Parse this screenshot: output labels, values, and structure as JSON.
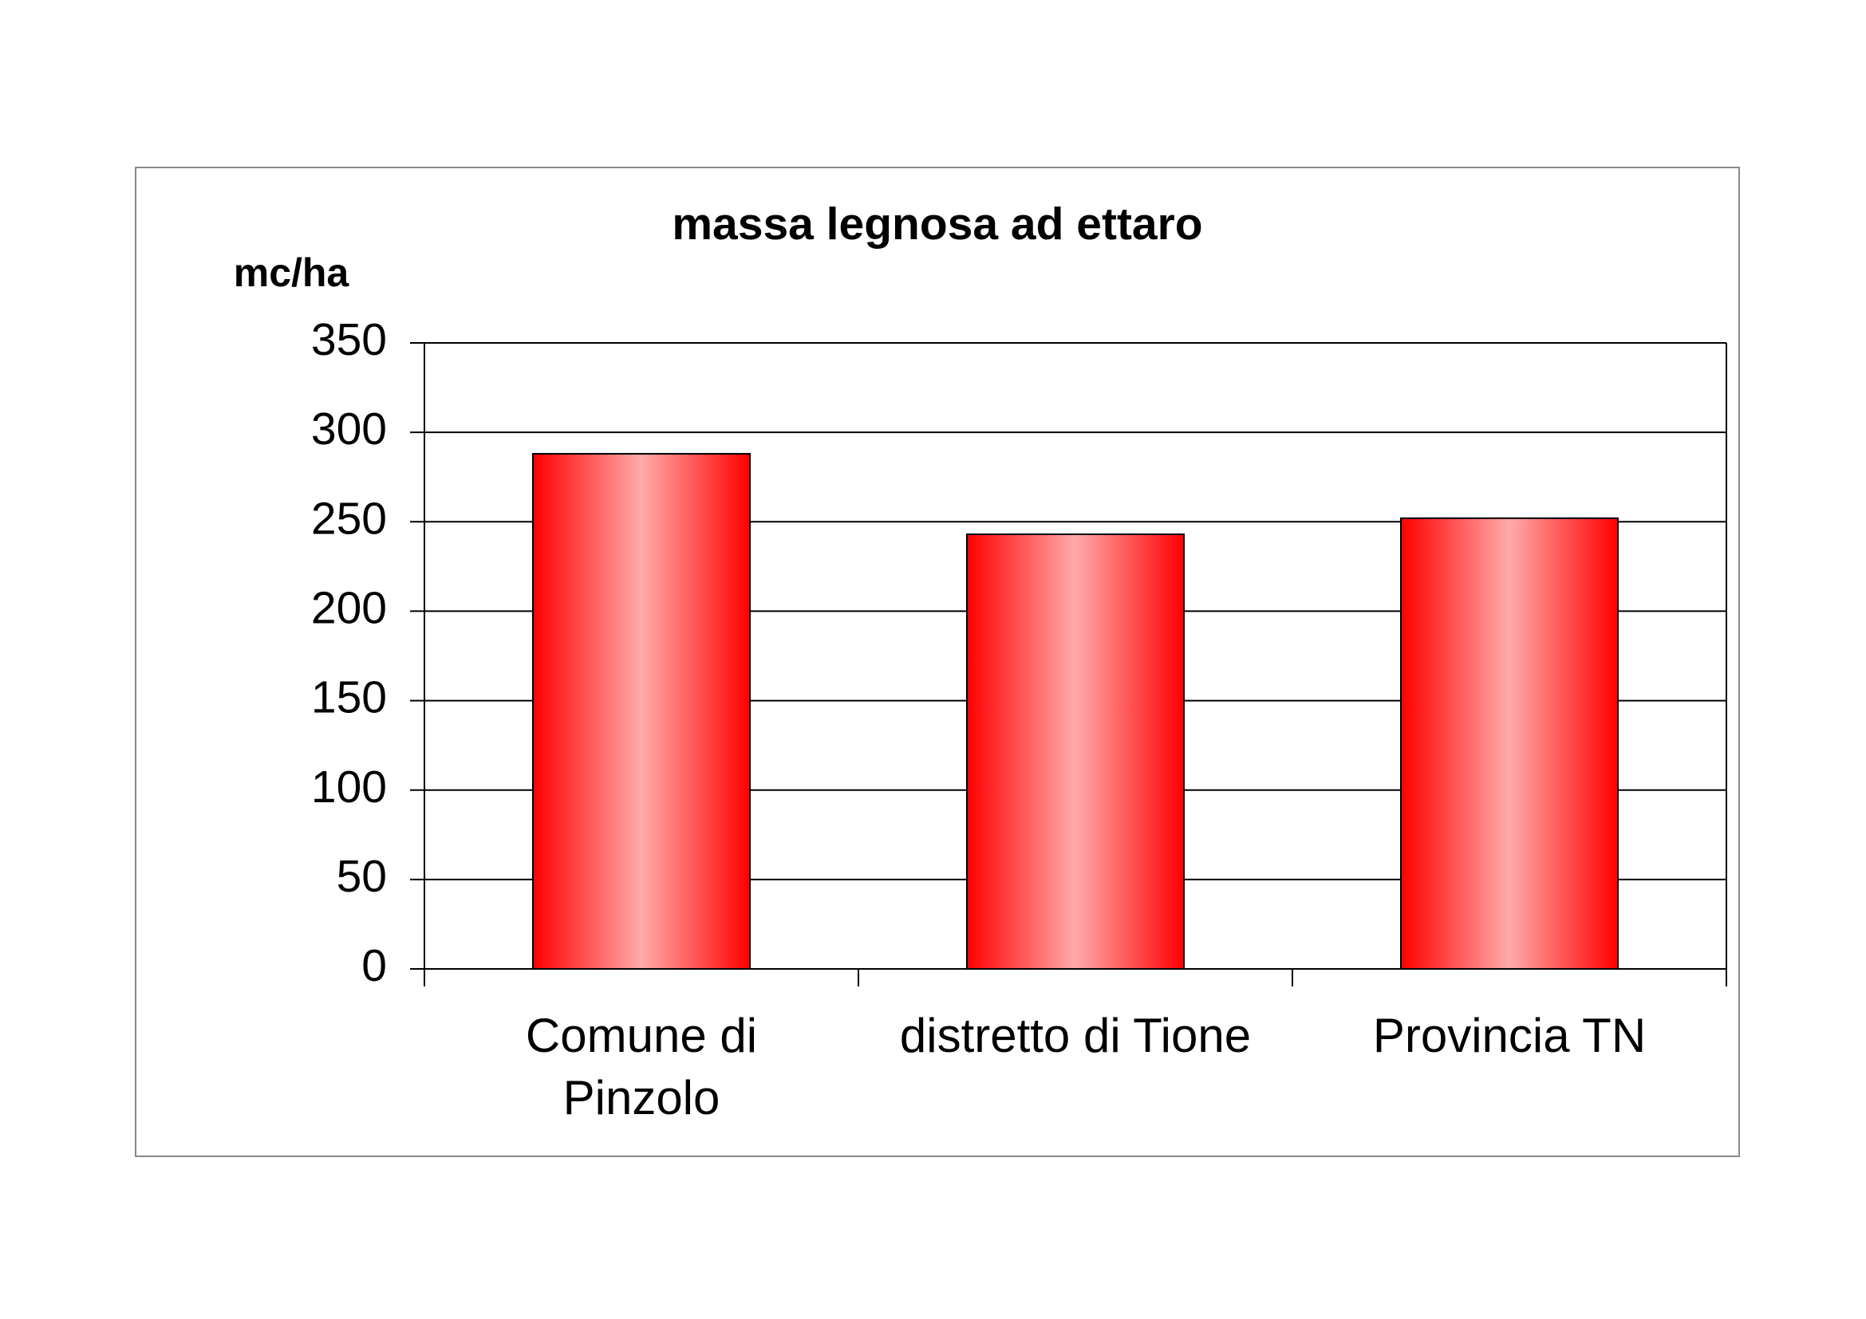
{
  "chart_data": {
    "type": "bar",
    "title": "massa legnosa ad ettaro",
    "ylabel": "mc/ha",
    "categories": [
      "Comune di Pinzolo",
      "distretto di Tione",
      "Provincia TN"
    ],
    "values": [
      288,
      243,
      252
    ],
    "color": "#ff0000",
    "ylim": [
      0,
      350
    ],
    "yticks": [
      0,
      50,
      100,
      150,
      200,
      250,
      300,
      350
    ],
    "grid": true
  }
}
